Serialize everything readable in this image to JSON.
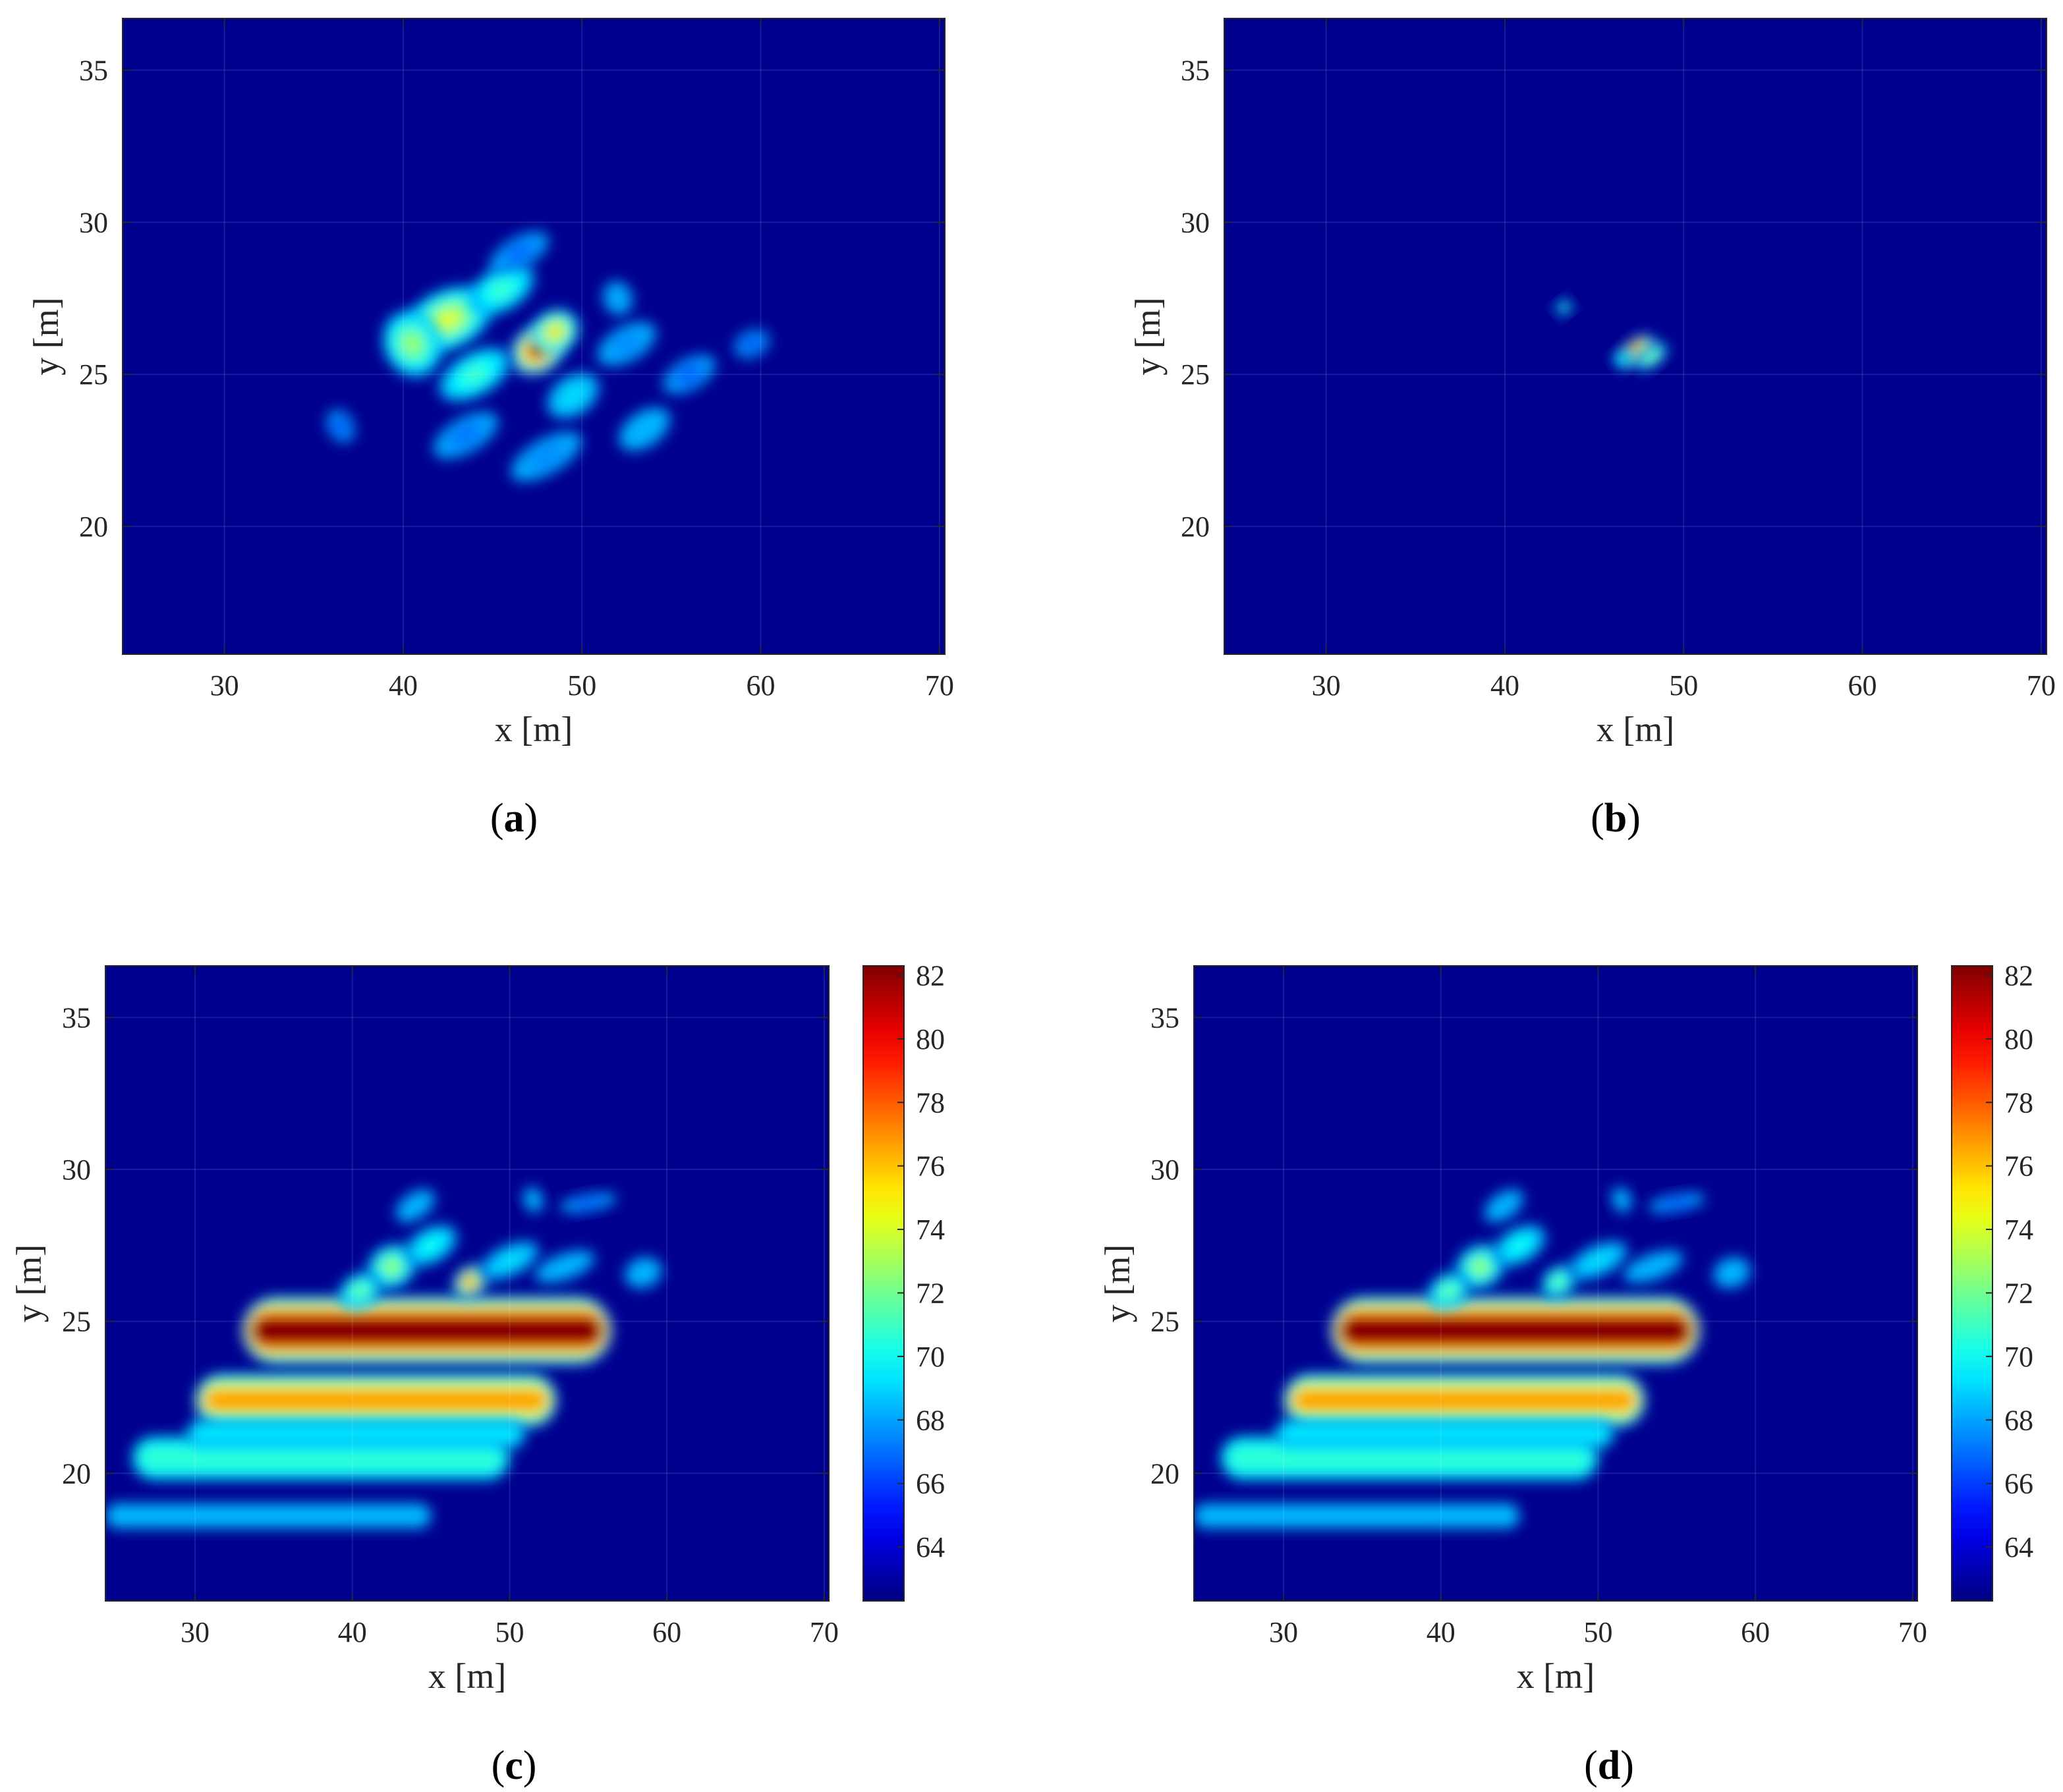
{
  "chart_data": [
    {
      "type": "heatmap",
      "panel": "(a)",
      "caption_letter": "a",
      "xlabel": "x [m]",
      "ylabel": "y [m]",
      "xlim": [
        24.3,
        70.3
      ],
      "ylim": [
        15.8,
        36.7
      ],
      "xticks": [
        30,
        40,
        50,
        60,
        70
      ],
      "yticks": [
        20,
        25,
        30,
        35
      ],
      "colormap": "jet",
      "background_color": "#00008f",
      "grid": true,
      "colorbar": false,
      "blobs": [
        {
          "x": 47.5,
          "y": 25.8,
          "sx": 1.6,
          "sy": 0.55,
          "angle": 35,
          "v": 1.0
        },
        {
          "x": 48.5,
          "y": 26.4,
          "sx": 1.4,
          "sy": 0.5,
          "angle": 35,
          "v": 0.7
        },
        {
          "x": 42.5,
          "y": 26.8,
          "sx": 2.6,
          "sy": 0.7,
          "angle": 25,
          "v": 0.62
        },
        {
          "x": 40.5,
          "y": 26.0,
          "sx": 1.6,
          "sy": 0.8,
          "angle": 25,
          "v": 0.55
        },
        {
          "x": 45.5,
          "y": 27.8,
          "sx": 2.0,
          "sy": 0.5,
          "angle": 30,
          "v": 0.45
        },
        {
          "x": 44.0,
          "y": 25.0,
          "sx": 2.2,
          "sy": 0.5,
          "angle": 30,
          "v": 0.45
        },
        {
          "x": 49.5,
          "y": 24.3,
          "sx": 1.6,
          "sy": 0.45,
          "angle": 35,
          "v": 0.35
        },
        {
          "x": 52.5,
          "y": 26.0,
          "sx": 1.8,
          "sy": 0.4,
          "angle": 30,
          "v": 0.25
        },
        {
          "x": 53.5,
          "y": 23.2,
          "sx": 1.6,
          "sy": 0.4,
          "angle": 35,
          "v": 0.3
        },
        {
          "x": 48.0,
          "y": 22.3,
          "sx": 2.2,
          "sy": 0.4,
          "angle": 30,
          "v": 0.25
        },
        {
          "x": 43.5,
          "y": 23.0,
          "sx": 2.0,
          "sy": 0.4,
          "angle": 30,
          "v": 0.22
        },
        {
          "x": 56.0,
          "y": 25.0,
          "sx": 1.6,
          "sy": 0.35,
          "angle": 30,
          "v": 0.18
        },
        {
          "x": 59.5,
          "y": 26.0,
          "sx": 1.0,
          "sy": 0.3,
          "angle": 25,
          "v": 0.15
        },
        {
          "x": 36.5,
          "y": 23.3,
          "sx": 0.7,
          "sy": 0.4,
          "angle": 30,
          "v": 0.15
        },
        {
          "x": 46.5,
          "y": 29.0,
          "sx": 1.8,
          "sy": 0.35,
          "angle": 30,
          "v": 0.2
        },
        {
          "x": 52.0,
          "y": 27.5,
          "sx": 0.8,
          "sy": 0.4,
          "angle": 20,
          "v": 0.28
        }
      ]
    },
    {
      "type": "heatmap",
      "panel": "(b)",
      "caption_letter": "b",
      "xlabel": "x [m]",
      "ylabel": "y [m]",
      "xlim": [
        24.3,
        70.3
      ],
      "ylim": [
        15.8,
        36.7
      ],
      "xticks": [
        30,
        40,
        50,
        60,
        70
      ],
      "yticks": [
        20,
        25,
        30,
        35
      ],
      "colormap": "jet",
      "background_color": "#00008f",
      "grid": true,
      "colorbar": false,
      "blobs": [
        {
          "x": 47.4,
          "y": 25.8,
          "sx": 1.1,
          "sy": 0.25,
          "angle": 38,
          "v": 1.0
        },
        {
          "x": 48.2,
          "y": 25.6,
          "sx": 1.0,
          "sy": 0.22,
          "angle": 38,
          "v": 0.55
        },
        {
          "x": 46.6,
          "y": 25.5,
          "sx": 0.5,
          "sy": 0.2,
          "angle": 38,
          "v": 0.4
        },
        {
          "x": 43.3,
          "y": 27.2,
          "sx": 0.45,
          "sy": 0.16,
          "angle": 38,
          "v": 0.45
        }
      ]
    },
    {
      "type": "heatmap",
      "panel": "(c)",
      "caption_letter": "c",
      "xlabel": "x [m]",
      "ylabel": "y [m]",
      "xlim": [
        24.3,
        70.3
      ],
      "ylim": [
        15.8,
        36.7
      ],
      "xticks": [
        30,
        40,
        50,
        60,
        70
      ],
      "yticks": [
        20,
        25,
        30,
        35
      ],
      "colormap": "jet",
      "background_color": "#00008f",
      "grid": true,
      "colorbar": true,
      "clim": [
        62.3,
        82.3
      ],
      "colorbar_ticks": [
        64,
        66,
        68,
        70,
        72,
        74,
        76,
        78,
        80,
        82
      ],
      "bands": [
        {
          "x0": 33.0,
          "x1": 56.5,
          "y": 24.7,
          "h": 0.7,
          "v": 1.0
        },
        {
          "x0": 30.0,
          "x1": 53.0,
          "y": 22.4,
          "h": 0.55,
          "v": 0.72
        },
        {
          "x0": 26.0,
          "x1": 50.0,
          "y": 20.5,
          "h": 0.45,
          "v": 0.42
        },
        {
          "x0": 24.3,
          "x1": 45.0,
          "y": 18.6,
          "h": 0.25,
          "v": 0.3
        },
        {
          "x0": 29.5,
          "x1": 51.0,
          "y": 21.3,
          "h": 0.3,
          "v": 0.35
        }
      ],
      "blobs": [
        {
          "x": 47.5,
          "y": 26.3,
          "sx": 1.2,
          "sy": 0.35,
          "angle": 40,
          "v": 0.85
        },
        {
          "x": 42.5,
          "y": 26.8,
          "sx": 1.6,
          "sy": 0.5,
          "angle": 30,
          "v": 0.55
        },
        {
          "x": 40.5,
          "y": 26.0,
          "sx": 1.4,
          "sy": 0.4,
          "angle": 30,
          "v": 0.5
        },
        {
          "x": 45.0,
          "y": 27.5,
          "sx": 1.8,
          "sy": 0.4,
          "angle": 30,
          "v": 0.4
        },
        {
          "x": 50.0,
          "y": 27.0,
          "sx": 2.0,
          "sy": 0.35,
          "angle": 25,
          "v": 0.35
        },
        {
          "x": 53.5,
          "y": 26.8,
          "sx": 2.0,
          "sy": 0.3,
          "angle": 20,
          "v": 0.3
        },
        {
          "x": 58.5,
          "y": 26.6,
          "sx": 1.2,
          "sy": 0.35,
          "angle": 20,
          "v": 0.3
        },
        {
          "x": 44.0,
          "y": 28.8,
          "sx": 1.4,
          "sy": 0.3,
          "angle": 35,
          "v": 0.3
        },
        {
          "x": 51.5,
          "y": 29.0,
          "sx": 0.6,
          "sy": 0.3,
          "angle": 20,
          "v": 0.3
        },
        {
          "x": 55.0,
          "y": 28.9,
          "sx": 1.8,
          "sy": 0.2,
          "angle": 10,
          "v": 0.18
        }
      ]
    },
    {
      "type": "heatmap",
      "panel": "(d)",
      "caption_letter": "d",
      "xlabel": "x [m]",
      "ylabel": "y [m]",
      "xlim": [
        24.3,
        70.3
      ],
      "ylim": [
        15.8,
        36.7
      ],
      "xticks": [
        30,
        40,
        50,
        60,
        70
      ],
      "yticks": [
        20,
        25,
        30,
        35
      ],
      "colormap": "jet",
      "background_color": "#00008f",
      "grid": true,
      "colorbar": true,
      "clim": [
        62.3,
        82.3
      ],
      "colorbar_ticks": [
        64,
        66,
        68,
        70,
        72,
        74,
        76,
        78,
        80,
        82
      ],
      "bands": [
        {
          "x0": 33.0,
          "x1": 56.5,
          "y": 24.7,
          "h": 0.7,
          "v": 1.0
        },
        {
          "x0": 30.0,
          "x1": 53.0,
          "y": 22.4,
          "h": 0.55,
          "v": 0.72
        },
        {
          "x0": 26.0,
          "x1": 50.0,
          "y": 20.5,
          "h": 0.45,
          "v": 0.42
        },
        {
          "x0": 24.3,
          "x1": 45.0,
          "y": 18.6,
          "h": 0.25,
          "v": 0.3
        },
        {
          "x0": 29.5,
          "x1": 51.0,
          "y": 21.3,
          "h": 0.3,
          "v": 0.35
        }
      ],
      "blobs": [
        {
          "x": 47.5,
          "y": 26.3,
          "sx": 1.2,
          "sy": 0.35,
          "angle": 40,
          "v": 0.5
        },
        {
          "x": 42.5,
          "y": 26.8,
          "sx": 1.6,
          "sy": 0.5,
          "angle": 30,
          "v": 0.55
        },
        {
          "x": 40.5,
          "y": 26.0,
          "sx": 1.4,
          "sy": 0.4,
          "angle": 30,
          "v": 0.5
        },
        {
          "x": 45.0,
          "y": 27.5,
          "sx": 1.8,
          "sy": 0.4,
          "angle": 30,
          "v": 0.4
        },
        {
          "x": 50.0,
          "y": 27.0,
          "sx": 2.0,
          "sy": 0.35,
          "angle": 25,
          "v": 0.35
        },
        {
          "x": 53.5,
          "y": 26.8,
          "sx": 2.0,
          "sy": 0.3,
          "angle": 20,
          "v": 0.3
        },
        {
          "x": 58.5,
          "y": 26.6,
          "sx": 1.2,
          "sy": 0.35,
          "angle": 20,
          "v": 0.3
        },
        {
          "x": 44.0,
          "y": 28.8,
          "sx": 1.4,
          "sy": 0.3,
          "angle": 35,
          "v": 0.3
        },
        {
          "x": 51.5,
          "y": 29.0,
          "sx": 0.6,
          "sy": 0.3,
          "angle": 20,
          "v": 0.3
        },
        {
          "x": 55.0,
          "y": 28.9,
          "sx": 1.8,
          "sy": 0.2,
          "angle": 10,
          "v": 0.18
        }
      ]
    }
  ]
}
